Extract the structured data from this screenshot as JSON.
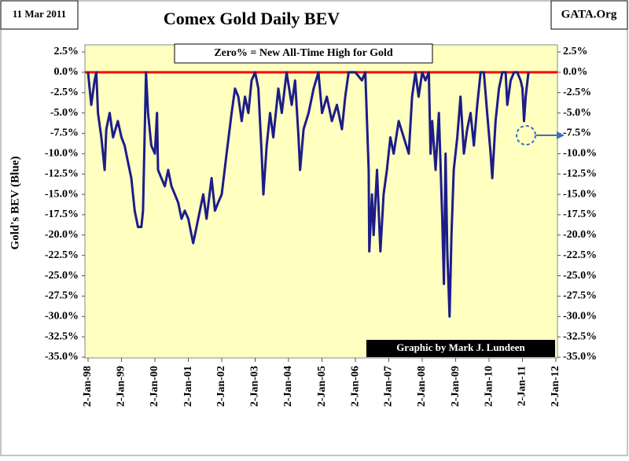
{
  "chart_data": {
    "type": "line",
    "title": "Comex Gold Daily BEV",
    "date_label": "11 Mar 2011",
    "source": "GATA.Org",
    "annotation": "Zero% = New All-Time High for Gold",
    "credit": "Graphic by Mark J. Lundeen",
    "y_label": "Gold's BEV (Blue)",
    "color": "#1c1c8a",
    "hline": {
      "value": 0,
      "color": "#ff0000"
    },
    "xlim": [
      "1998-01-02",
      "2012-01-02"
    ],
    "xticks": [
      {
        "value": "1998-01-02",
        "label": "2-Jan-98"
      },
      {
        "value": "1999-01-02",
        "label": "2-Jan-99"
      },
      {
        "value": "2000-01-02",
        "label": "2-Jan-00"
      },
      {
        "value": "2001-01-02",
        "label": "2-Jan-01"
      },
      {
        "value": "2002-01-02",
        "label": "2-Jan-02"
      },
      {
        "value": "2003-01-02",
        "label": "2-Jan-03"
      },
      {
        "value": "2004-01-02",
        "label": "2-Jan-04"
      },
      {
        "value": "2005-01-02",
        "label": "2-Jan-05"
      },
      {
        "value": "2006-01-02",
        "label": "2-Jan-06"
      },
      {
        "value": "2007-01-02",
        "label": "2-Jan-07"
      },
      {
        "value": "2008-01-02",
        "label": "2-Jan-08"
      },
      {
        "value": "2009-01-02",
        "label": "2-Jan-09"
      },
      {
        "value": "2010-01-02",
        "label": "2-Jan-10"
      },
      {
        "value": "2011-01-02",
        "label": "2-Jan-11"
      },
      {
        "value": "2012-01-02",
        "label": "2-Jan-12"
      }
    ],
    "ylim": [
      -35,
      2.5
    ],
    "yticks": [
      {
        "value": 2.5,
        "label": "2.5%"
      },
      {
        "value": 0,
        "label": "0.0%"
      },
      {
        "value": -2.5,
        "label": "-2.5%"
      },
      {
        "value": -5,
        "label": "-5.0%"
      },
      {
        "value": -7.5,
        "label": "-7.5%"
      },
      {
        "value": -10,
        "label": "-10.0%"
      },
      {
        "value": -12.5,
        "label": "-12.5%"
      },
      {
        "value": -15,
        "label": "-15.0%"
      },
      {
        "value": -17.5,
        "label": "-17.5%"
      },
      {
        "value": -20,
        "label": "-20.0%"
      },
      {
        "value": -22.5,
        "label": "-22.5%"
      },
      {
        "value": -25,
        "label": "-25.0%"
      },
      {
        "value": -27.5,
        "label": "-27.5%"
      },
      {
        "value": -30,
        "label": "-30.0%"
      },
      {
        "value": -32.5,
        "label": "-32.5%"
      },
      {
        "value": -35,
        "label": "-35.0%"
      }
    ],
    "x": [
      "1998-01-02",
      "1998-01-19",
      "1998-02-06",
      "1998-03-14",
      "1998-04-02",
      "1998-04-20",
      "1998-05-27",
      "1998-07-02",
      "1998-07-20",
      "1998-08-26",
      "1998-10-02",
      "1998-11-24",
      "1999-01-02",
      "1999-02-06",
      "1999-03-14",
      "1999-04-20",
      "1999-05-27",
      "1999-07-02",
      "1999-08-08",
      "1999-08-26",
      "1999-09-27",
      "1999-10-20",
      "1999-11-24",
      "2000-01-02",
      "2000-01-26",
      "2000-02-06",
      "2000-03-14",
      "2000-04-20",
      "2000-05-27",
      "2000-07-02",
      "2000-08-08",
      "2000-09-13",
      "2000-10-20",
      "2000-11-24",
      "2001-01-02",
      "2001-02-06",
      "2001-02-24",
      "2001-04-02",
      "2001-05-08",
      "2001-06-14",
      "2001-07-20",
      "2001-09-13",
      "2001-10-20",
      "2001-11-24",
      "2002-01-02",
      "2002-02-24",
      "2002-04-20",
      "2002-05-27",
      "2002-07-02",
      "2002-08-08",
      "2002-09-13",
      "2002-10-20",
      "2002-11-24",
      "2003-01-02",
      "2003-02-06",
      "2003-03-14",
      "2003-04-02",
      "2003-05-08",
      "2003-06-14",
      "2003-07-20",
      "2003-09-13",
      "2003-10-20",
      "2003-12-12",
      "2004-02-06",
      "2004-03-14",
      "2004-04-20",
      "2004-05-08",
      "2004-06-14",
      "2004-08-08",
      "2004-10-02",
      "2004-11-24",
      "2005-01-02",
      "2005-02-24",
      "2005-04-20",
      "2005-06-14",
      "2005-08-08",
      "2005-09-13",
      "2005-10-20",
      "2005-11-24",
      "2006-01-02",
      "2006-03-14",
      "2006-04-20",
      "2006-05-27",
      "2006-06-03",
      "2006-07-02",
      "2006-07-20",
      "2006-08-26",
      "2006-10-02",
      "2006-11-06",
      "2006-12-12",
      "2007-01-19",
      "2007-02-24",
      "2007-04-20",
      "2007-06-14",
      "2007-08-08",
      "2007-09-13",
      "2007-10-20",
      "2007-11-24",
      "2008-01-02",
      "2008-02-06",
      "2008-03-14",
      "2008-04-02",
      "2008-04-20",
      "2008-05-27",
      "2008-07-02",
      "2008-08-08",
      "2008-08-26",
      "2008-09-13",
      "2008-10-02",
      "2008-10-27",
      "2008-11-17",
      "2008-12-12",
      "2009-01-19",
      "2009-02-24",
      "2009-04-02",
      "2009-05-08",
      "2009-06-14",
      "2009-07-20",
      "2009-08-26",
      "2009-10-02",
      "2009-11-06",
      "2009-12-12",
      "2010-01-19",
      "2010-02-06",
      "2010-03-14",
      "2010-04-20",
      "2010-05-27",
      "2010-07-02",
      "2010-07-20",
      "2010-08-26",
      "2010-10-02",
      "2010-11-06",
      "2010-12-12",
      "2011-01-02",
      "2011-01-19",
      "2011-02-06",
      "2011-03-08"
    ],
    "values": [
      0,
      -2,
      -4,
      -1,
      0,
      -5,
      -8,
      -12,
      -7,
      -5,
      -8,
      -6,
      -8,
      -9,
      -11,
      -13,
      -17,
      -19,
      -19,
      -17,
      0,
      -5,
      -9,
      -10,
      -5,
      -12,
      -13,
      -14,
      -12,
      -14,
      -15,
      -16,
      -18,
      -17,
      -18,
      -20,
      -21,
      -19,
      -17,
      -15,
      -18,
      -13,
      -17,
      -16,
      -15,
      -10,
      -5,
      -2,
      -3,
      -6,
      -3,
      -5,
      -1,
      0,
      -2,
      -10,
      -15,
      -9,
      -5,
      -8,
      -2,
      -5,
      0,
      -4,
      -1,
      -8,
      -12,
      -7,
      -5,
      -2,
      0,
      -5,
      -3,
      -6,
      -4,
      -7,
      -3,
      0,
      0,
      0,
      -1,
      0,
      -12,
      -22,
      -15,
      -20,
      -12,
      -22,
      -15,
      -12,
      -8,
      -10,
      -6,
      -8,
      -10,
      -3,
      0,
      -3,
      0,
      -1,
      0,
      -10,
      -6,
      -12,
      -5,
      -18,
      -26,
      -10,
      -22,
      -30,
      -20,
      -12,
      -8,
      -3,
      -10,
      -7,
      -5,
      -9,
      -4,
      0,
      0,
      -5,
      -10,
      -13,
      -6,
      -2,
      0,
      0,
      -4,
      -1,
      0,
      0,
      -1,
      -2,
      -6,
      -3,
      0
    ]
  }
}
